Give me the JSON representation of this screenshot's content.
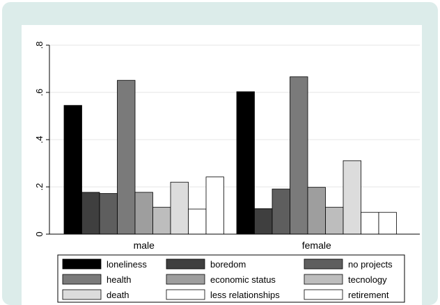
{
  "chart_data": {
    "type": "bar",
    "groups": [
      "male",
      "female"
    ],
    "ylim": [
      0,
      0.8
    ],
    "yticks": [
      0,
      0.2,
      0.4,
      0.6,
      0.8
    ],
    "ytick_labels": [
      "0",
      ".2",
      ".4",
      ".6",
      ".8"
    ],
    "grid": true,
    "legend_position": "bottom",
    "series": [
      {
        "name": "loneliness",
        "color": "#000000",
        "values": [
          0.545,
          0.603
        ]
      },
      {
        "name": "boredom",
        "color": "#3f3f3f",
        "values": [
          0.177,
          0.108
        ]
      },
      {
        "name": "no projects",
        "color": "#5e5e5e",
        "values": [
          0.172,
          0.191
        ]
      },
      {
        "name": "health",
        "color": "#7a7a7a",
        "values": [
          0.651,
          0.666
        ]
      },
      {
        "name": "economic status",
        "color": "#9e9e9e",
        "values": [
          0.177,
          0.198
        ]
      },
      {
        "name": "tecnology",
        "color": "#bdbdbd",
        "values": [
          0.114,
          0.114
        ]
      },
      {
        "name": "death",
        "color": "#dcdcdc",
        "values": [
          0.22,
          0.311
        ]
      },
      {
        "name": "less relationships",
        "color": "#ffffff",
        "values": [
          0.106,
          0.092
        ]
      },
      {
        "name": "retirement",
        "color": "#ffffff",
        "values": [
          0.242,
          0.092
        ]
      }
    ]
  }
}
